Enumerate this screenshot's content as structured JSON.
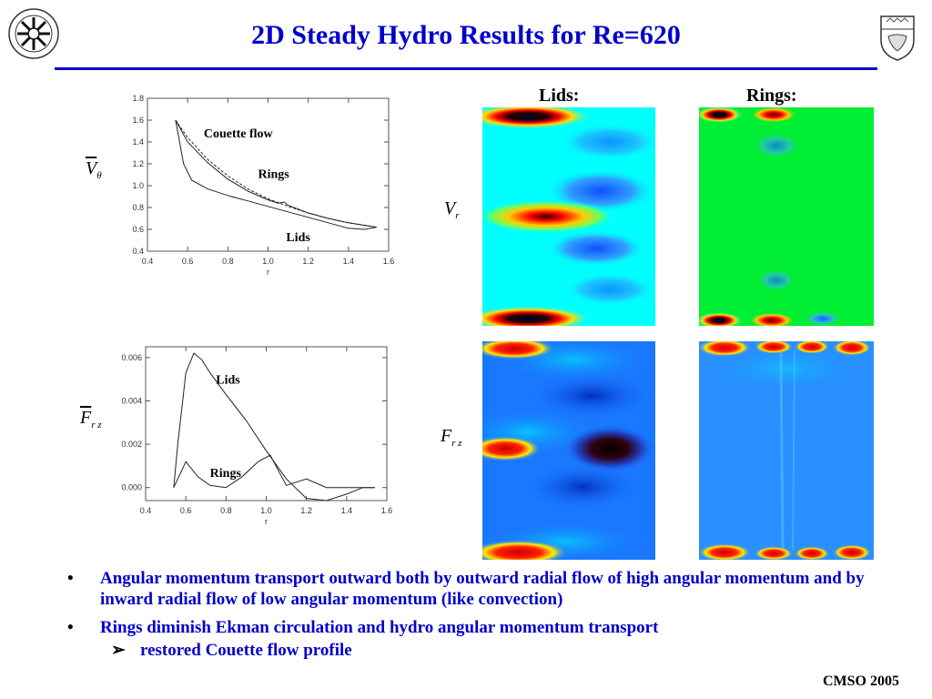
{
  "title": "2D Steady Hydro Results for Re=620",
  "top_chart": {
    "type": "line",
    "ylabel": "V",
    "ylabel_sub": "θ",
    "xlabel": "r",
    "xlim": [
      0.4,
      1.6
    ],
    "ylim": [
      0.4,
      1.8
    ],
    "xticks": [
      "0.4",
      "0.6",
      "0.8",
      "1.0",
      "1.2",
      "1.4",
      "1.6"
    ],
    "yticks": [
      "0.4",
      "0.6",
      "0.8",
      "1.0",
      "1.2",
      "1.4",
      "1.6",
      "1.8"
    ],
    "annotations": [
      "Couette flow",
      "Rings",
      "Lids"
    ],
    "series": [
      {
        "name": "Couette flow",
        "style": "dashed",
        "x": [
          0.54,
          0.6,
          0.7,
          0.8,
          0.9,
          1.0,
          1.1,
          1.2,
          1.3,
          1.4,
          1.54
        ],
        "y": [
          1.6,
          1.44,
          1.24,
          1.09,
          0.97,
          0.88,
          0.81,
          0.75,
          0.7,
          0.66,
          0.62
        ]
      },
      {
        "name": "Rings",
        "style": "solid",
        "x": [
          0.54,
          0.6,
          0.7,
          0.8,
          0.9,
          1.0,
          1.05,
          1.08,
          1.1,
          1.2,
          1.3,
          1.4,
          1.54
        ],
        "y": [
          1.6,
          1.4,
          1.21,
          1.06,
          0.95,
          0.87,
          0.84,
          0.85,
          0.82,
          0.75,
          0.7,
          0.66,
          0.62
        ]
      },
      {
        "name": "Lids",
        "style": "solid",
        "x": [
          0.54,
          0.58,
          0.62,
          0.7,
          0.8,
          0.9,
          1.0,
          1.1,
          1.2,
          1.3,
          1.4,
          1.48,
          1.54
        ],
        "y": [
          1.6,
          1.2,
          1.05,
          0.97,
          0.91,
          0.86,
          0.81,
          0.76,
          0.71,
          0.66,
          0.61,
          0.6,
          0.62
        ]
      }
    ]
  },
  "bottom_chart": {
    "type": "line",
    "ylabel": "F",
    "ylabel_sub": "r z",
    "xlabel": "r",
    "xlim": [
      0.4,
      1.6
    ],
    "ylim": [
      -0.0006,
      0.0065
    ],
    "xticks": [
      "0.4",
      "0.6",
      "0.8",
      "1.0",
      "1.2",
      "1.4",
      "1.6"
    ],
    "yticks": [
      "0.000",
      "0.002",
      "0.004",
      "0.006"
    ],
    "annotations": [
      "Lids",
      "Rings"
    ],
    "series": [
      {
        "name": "Lids",
        "x": [
          0.54,
          0.56,
          0.6,
          0.64,
          0.68,
          0.72,
          0.8,
          0.9,
          1.0,
          1.1,
          1.2,
          1.3,
          1.4,
          1.48,
          1.54
        ],
        "y": [
          0.0,
          0.002,
          0.0053,
          0.0062,
          0.0059,
          0.0053,
          0.0043,
          0.0031,
          0.0017,
          0.0004,
          -0.0005,
          -0.0006,
          -0.0003,
          0.0,
          0.0
        ]
      },
      {
        "name": "Rings",
        "x": [
          0.54,
          0.6,
          0.66,
          0.72,
          0.8,
          0.88,
          0.96,
          1.02,
          1.06,
          1.1,
          1.2,
          1.3,
          1.4,
          1.48,
          1.54
        ],
        "y": [
          0.0,
          0.0012,
          0.0005,
          0.0001,
          0.0,
          0.0005,
          0.0012,
          0.0015,
          0.0008,
          0.0001,
          0.0004,
          0.0,
          0.0,
          0.0,
          0.0
        ]
      }
    ]
  },
  "fields": {
    "col_lids": "Lids:",
    "col_rings": "Rings:",
    "row1_label": "V",
    "row1_sub": "r",
    "row2_label": "F",
    "row2_sub": "r z"
  },
  "bullets": [
    "Angular momentum transport outward both by outward radial flow of high angular momentum and by inward radial flow of low angular momentum (like convection)",
    "Rings diminish Ekman circulation and hydro angular momentum transport"
  ],
  "sub_bullet": "restored Couette flow profile",
  "bullet_symbol": "•",
  "sub_bullet_symbol": "➢",
  "footer": "CMSO 2005",
  "logo_left": "cmso-logo-icon",
  "logo_right": "university-crest-icon",
  "colors": {
    "title": "#0000cc",
    "lids_bg": "#00ffff",
    "rings_bg": "#00ee33",
    "flux_bg": "#1a77ff"
  }
}
